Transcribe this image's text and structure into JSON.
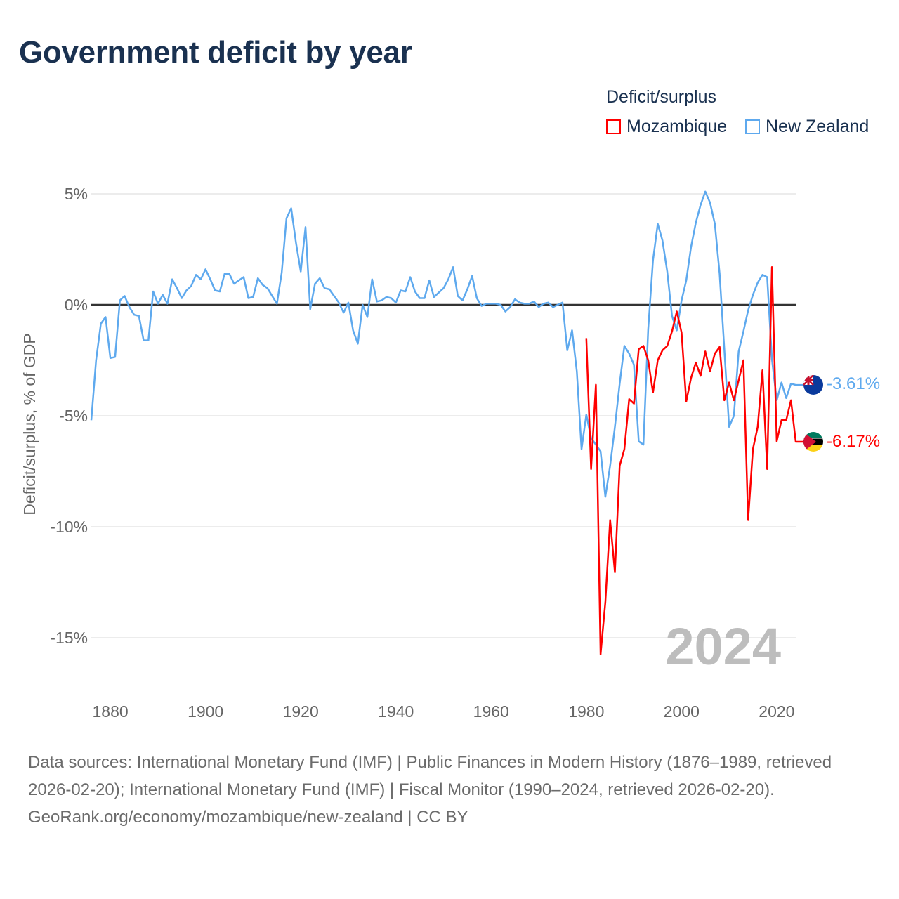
{
  "title": "Government deficit by year",
  "legend": {
    "title": "Deficit/surplus",
    "items": [
      {
        "label": "Mozambique",
        "color": "#ff0000"
      },
      {
        "label": "New Zealand",
        "color": "#5ea9ee"
      }
    ]
  },
  "chart_data": {
    "type": "line",
    "title": "Government deficit by year",
    "xlabel": "",
    "ylabel": "Deficit/surplus, % of GDP",
    "xlim": [
      1876,
      2024
    ],
    "ylim": [
      -17,
      7
    ],
    "x_ticks": [
      "1880",
      "1900",
      "1920",
      "1940",
      "1960",
      "1980",
      "2000",
      "2020"
    ],
    "y_ticks": [
      {
        "value": 5,
        "label": "5%"
      },
      {
        "value": 0,
        "label": "0%"
      },
      {
        "value": -5,
        "label": "-5%"
      },
      {
        "value": -10,
        "label": "-10%"
      },
      {
        "value": -15,
        "label": "-15%"
      }
    ],
    "grid": true,
    "legend_position": "top-right",
    "year_annotation": "2024",
    "series": [
      {
        "name": "New Zealand",
        "color": "#5ea9ee",
        "start_year": 1876,
        "end_label": "-3.61%",
        "values": [
          -5.2,
          -2.5,
          -0.85,
          -0.55,
          -2.4,
          -2.35,
          0.2,
          0.4,
          -0.1,
          -0.45,
          -0.5,
          -1.6,
          -1.6,
          0.6,
          0.05,
          0.45,
          0.05,
          1.15,
          0.75,
          0.3,
          0.65,
          0.85,
          1.35,
          1.15,
          1.6,
          1.15,
          0.65,
          0.6,
          1.4,
          1.4,
          0.95,
          1.1,
          1.25,
          0.3,
          0.35,
          1.2,
          0.9,
          0.75,
          0.4,
          0.05,
          1.45,
          3.9,
          4.35,
          2.8,
          1.5,
          3.5,
          -0.2,
          0.95,
          1.2,
          0.75,
          0.7,
          0.4,
          0.1,
          -0.35,
          0.1,
          -1.15,
          -1.75,
          0,
          -0.55,
          1.15,
          0.15,
          0.2,
          0.35,
          0.3,
          0.1,
          0.65,
          0.6,
          1.25,
          0.6,
          0.3,
          0.3,
          1.1,
          0.35,
          0.55,
          0.75,
          1.15,
          1.7,
          0.4,
          0.2,
          0.7,
          1.3,
          0.3,
          -0.05,
          0.05,
          0.05,
          0.05,
          0,
          -0.3,
          -0.1,
          0.25,
          0.1,
          0.05,
          0.05,
          0.15,
          -0.1,
          0.05,
          0.1,
          -0.1,
          0,
          0.1,
          -2.05,
          -1.15,
          -3.0,
          -6.5,
          -4.95,
          -6.0,
          -6.3,
          -6.6,
          -8.65,
          -7.25,
          -5.5,
          -3.55,
          -1.85,
          -2.2,
          -2.7,
          -6.15,
          -6.3,
          -1.1,
          2.0,
          3.65,
          2.9,
          1.5,
          -0.5,
          -1.15,
          0.2,
          1.1,
          2.6,
          3.7,
          4.5,
          5.1,
          4.6,
          3.65,
          1.4,
          -2.0,
          -5.5,
          -5.0,
          -2.1,
          -1.2,
          -0.25,
          0.45,
          1.0,
          1.35,
          1.25,
          -2.45,
          -4.3,
          -3.5,
          -4.2,
          -3.55,
          -3.61
        ]
      },
      {
        "name": "Mozambique",
        "color": "#ff0000",
        "start_year": 1980,
        "end_label": "-6.17%",
        "values": [
          -1.5,
          -7.4,
          -3.6,
          -15.75,
          -13.4,
          -9.7,
          -12.05,
          -7.25,
          -6.5,
          -4.25,
          -4.45,
          -2.0,
          -1.85,
          -2.5,
          -3.95,
          -2.5,
          -2.05,
          -1.85,
          -1.2,
          -0.3,
          -1.25,
          -4.35,
          -3.3,
          -2.6,
          -3.2,
          -2.1,
          -3.0,
          -2.2,
          -1.9,
          -4.3,
          -3.5,
          -4.3,
          -3.4,
          -2.5,
          -9.7,
          -6.5,
          -5.5,
          -2.95,
          -7.4,
          1.7,
          -6.15,
          -5.2,
          -5.2,
          -4.3,
          -6.17
        ]
      }
    ]
  },
  "footer": {
    "sources": "Data sources: International Monetary Fund (IMF) | Public Finances in Modern History (1876–1989, retrieved 2026-02-20); International Monetary Fund (IMF) | Fiscal Monitor (1990–2024, retrieved 2026-02-20).",
    "credit": "GeoRank.org/economy/mozambique/new-zealand | CC BY"
  }
}
